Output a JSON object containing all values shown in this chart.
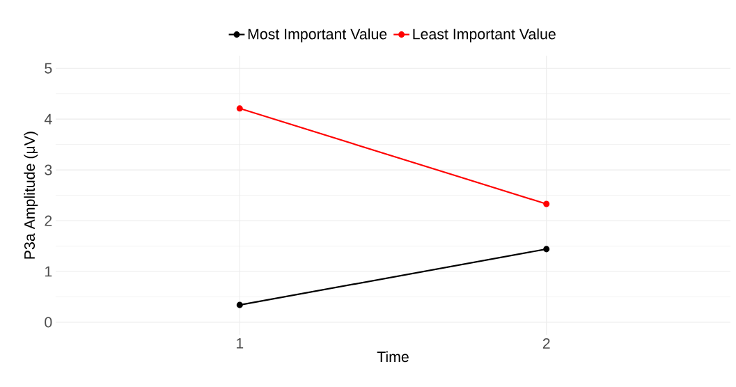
{
  "chart_data": {
    "type": "line",
    "xlabel": "Time",
    "ylabel": "P3a Amplitude (μV)",
    "categories": [
      "1",
      "2"
    ],
    "series": [
      {
        "name": "Most Important Value",
        "color": "#000000",
        "values": [
          0.34,
          1.44
        ]
      },
      {
        "name": "Least Important Value",
        "color": "#ff0000",
        "values": [
          4.21,
          2.33
        ]
      }
    ],
    "ylim": [
      -0.25,
      5.25
    ],
    "yticks": [
      0,
      1,
      2,
      3,
      4,
      5
    ],
    "grid": true,
    "legend": "top",
    "marker": "circle",
    "line_style": "solid"
  }
}
